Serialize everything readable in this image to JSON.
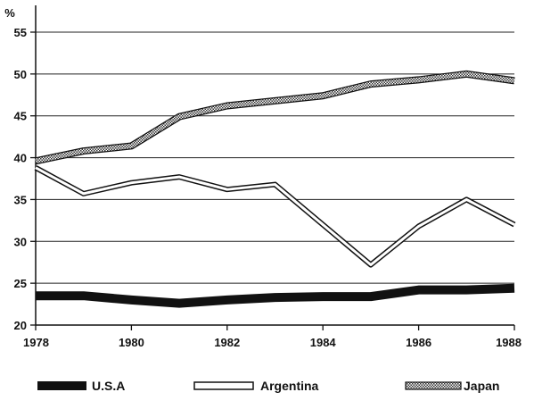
{
  "chart_data": {
    "type": "line",
    "title": "",
    "xlabel": "",
    "ylabel": "%",
    "xlim": [
      1978,
      1988
    ],
    "ylim": [
      20,
      55
    ],
    "x_ticks": [
      1978,
      1980,
      1982,
      1984,
      1986,
      1988
    ],
    "y_ticks": [
      20,
      25,
      30,
      35,
      40,
      45,
      50,
      55
    ],
    "grid": "horizontal",
    "legend_placement": "bottom",
    "x": [
      1978,
      1979,
      1980,
      1981,
      1982,
      1983,
      1984,
      1985,
      1986,
      1987,
      1988
    ],
    "series": [
      {
        "name": "U.S.A",
        "values": [
          23.5,
          23.5,
          23.0,
          22.6,
          23.0,
          23.3,
          23.4,
          23.4,
          24.2,
          24.2,
          24.4
        ],
        "style": "solid-black",
        "color": "#111111"
      },
      {
        "name": "Argentina",
        "values": [
          38.8,
          35.7,
          37.0,
          37.7,
          36.2,
          36.8,
          32.0,
          27.2,
          31.8,
          35.0,
          32.0
        ],
        "style": "outline",
        "color": "#111111"
      },
      {
        "name": "Japan",
        "values": [
          39.6,
          40.8,
          41.4,
          44.9,
          46.2,
          46.8,
          47.4,
          48.8,
          49.3,
          50.0,
          49.2
        ],
        "style": "dotted-band",
        "color": "#888888"
      }
    ]
  }
}
